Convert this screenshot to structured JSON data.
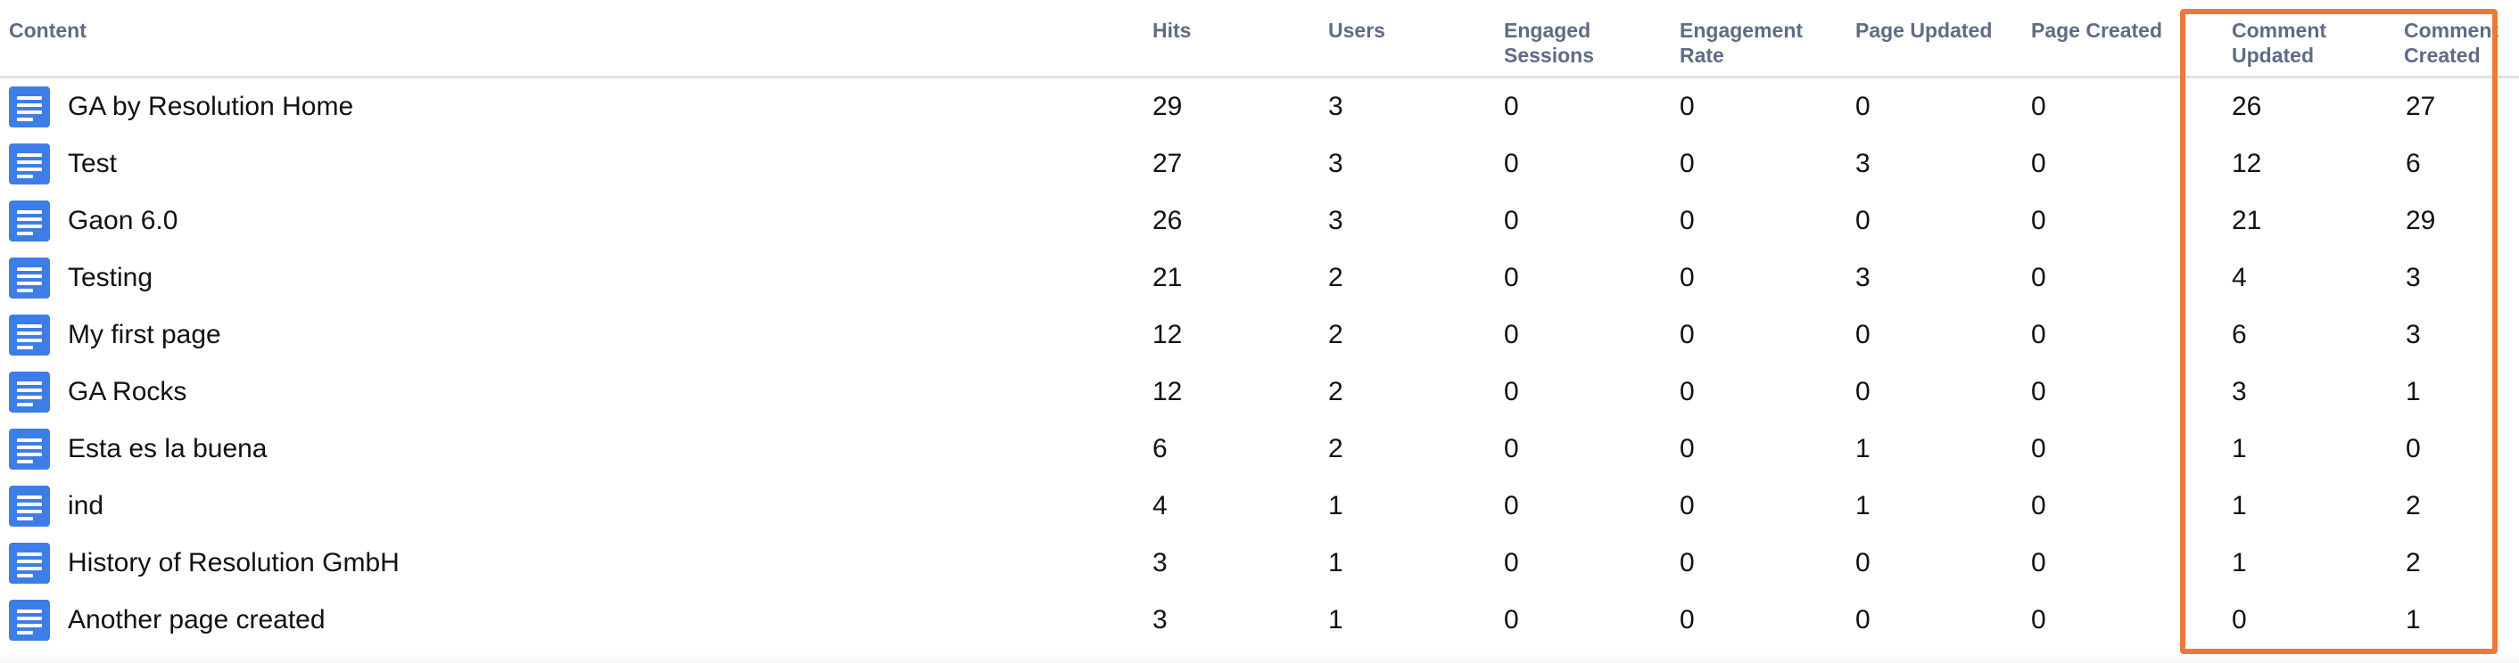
{
  "table": {
    "headers": {
      "content": "Content",
      "hits": "Hits",
      "users": "Users",
      "engaged_sessions": [
        "Engaged",
        "Sessions"
      ],
      "engagement_rate": [
        "Engagement",
        "Rate"
      ],
      "page_updated": "Page Updated",
      "page_created": "Page Created",
      "comment_updated": [
        "Comment",
        "Updated"
      ],
      "comment_created": [
        "Comment",
        "Created"
      ]
    },
    "rows": [
      {
        "title": "GA by Resolution Home",
        "hits": "29",
        "users": "3",
        "engaged_sessions": "0",
        "engagement_rate": "0",
        "page_updated": "0",
        "page_created": "0",
        "comment_updated": "26",
        "comment_created": "27"
      },
      {
        "title": "Test",
        "hits": "27",
        "users": "3",
        "engaged_sessions": "0",
        "engagement_rate": "0",
        "page_updated": "3",
        "page_created": "0",
        "comment_updated": "12",
        "comment_created": "6"
      },
      {
        "title": "Gaon 6.0",
        "hits": "26",
        "users": "3",
        "engaged_sessions": "0",
        "engagement_rate": "0",
        "page_updated": "0",
        "page_created": "0",
        "comment_updated": "21",
        "comment_created": "29"
      },
      {
        "title": "Testing",
        "hits": "21",
        "users": "2",
        "engaged_sessions": "0",
        "engagement_rate": "0",
        "page_updated": "3",
        "page_created": "0",
        "comment_updated": "4",
        "comment_created": "3"
      },
      {
        "title": "My first page",
        "hits": "12",
        "users": "2",
        "engaged_sessions": "0",
        "engagement_rate": "0",
        "page_updated": "0",
        "page_created": "0",
        "comment_updated": "6",
        "comment_created": "3"
      },
      {
        "title": "GA Rocks",
        "hits": "12",
        "users": "2",
        "engaged_sessions": "0",
        "engagement_rate": "0",
        "page_updated": "0",
        "page_created": "0",
        "comment_updated": "3",
        "comment_created": "1"
      },
      {
        "title": "Esta es la buena",
        "hits": "6",
        "users": "2",
        "engaged_sessions": "0",
        "engagement_rate": "0",
        "page_updated": "1",
        "page_created": "0",
        "comment_updated": "1",
        "comment_created": "0"
      },
      {
        "title": "ind",
        "hits": "4",
        "users": "1",
        "engaged_sessions": "0",
        "engagement_rate": "0",
        "page_updated": "1",
        "page_created": "0",
        "comment_updated": "1",
        "comment_created": "2"
      },
      {
        "title": "History of Resolution GmbH",
        "hits": "3",
        "users": "1",
        "engaged_sessions": "0",
        "engagement_rate": "0",
        "page_updated": "0",
        "page_created": "0",
        "comment_updated": "1",
        "comment_created": "2"
      },
      {
        "title": "Another page created",
        "hits": "3",
        "users": "1",
        "engaged_sessions": "0",
        "engagement_rate": "0",
        "page_updated": "0",
        "page_created": "0",
        "comment_updated": "0",
        "comment_created": "1"
      }
    ]
  },
  "icons": {
    "row_icon": "page-icon"
  },
  "colors": {
    "icon": "#3d7de8",
    "highlight": "#ea7a3a",
    "header_text": "#5e6c84"
  }
}
